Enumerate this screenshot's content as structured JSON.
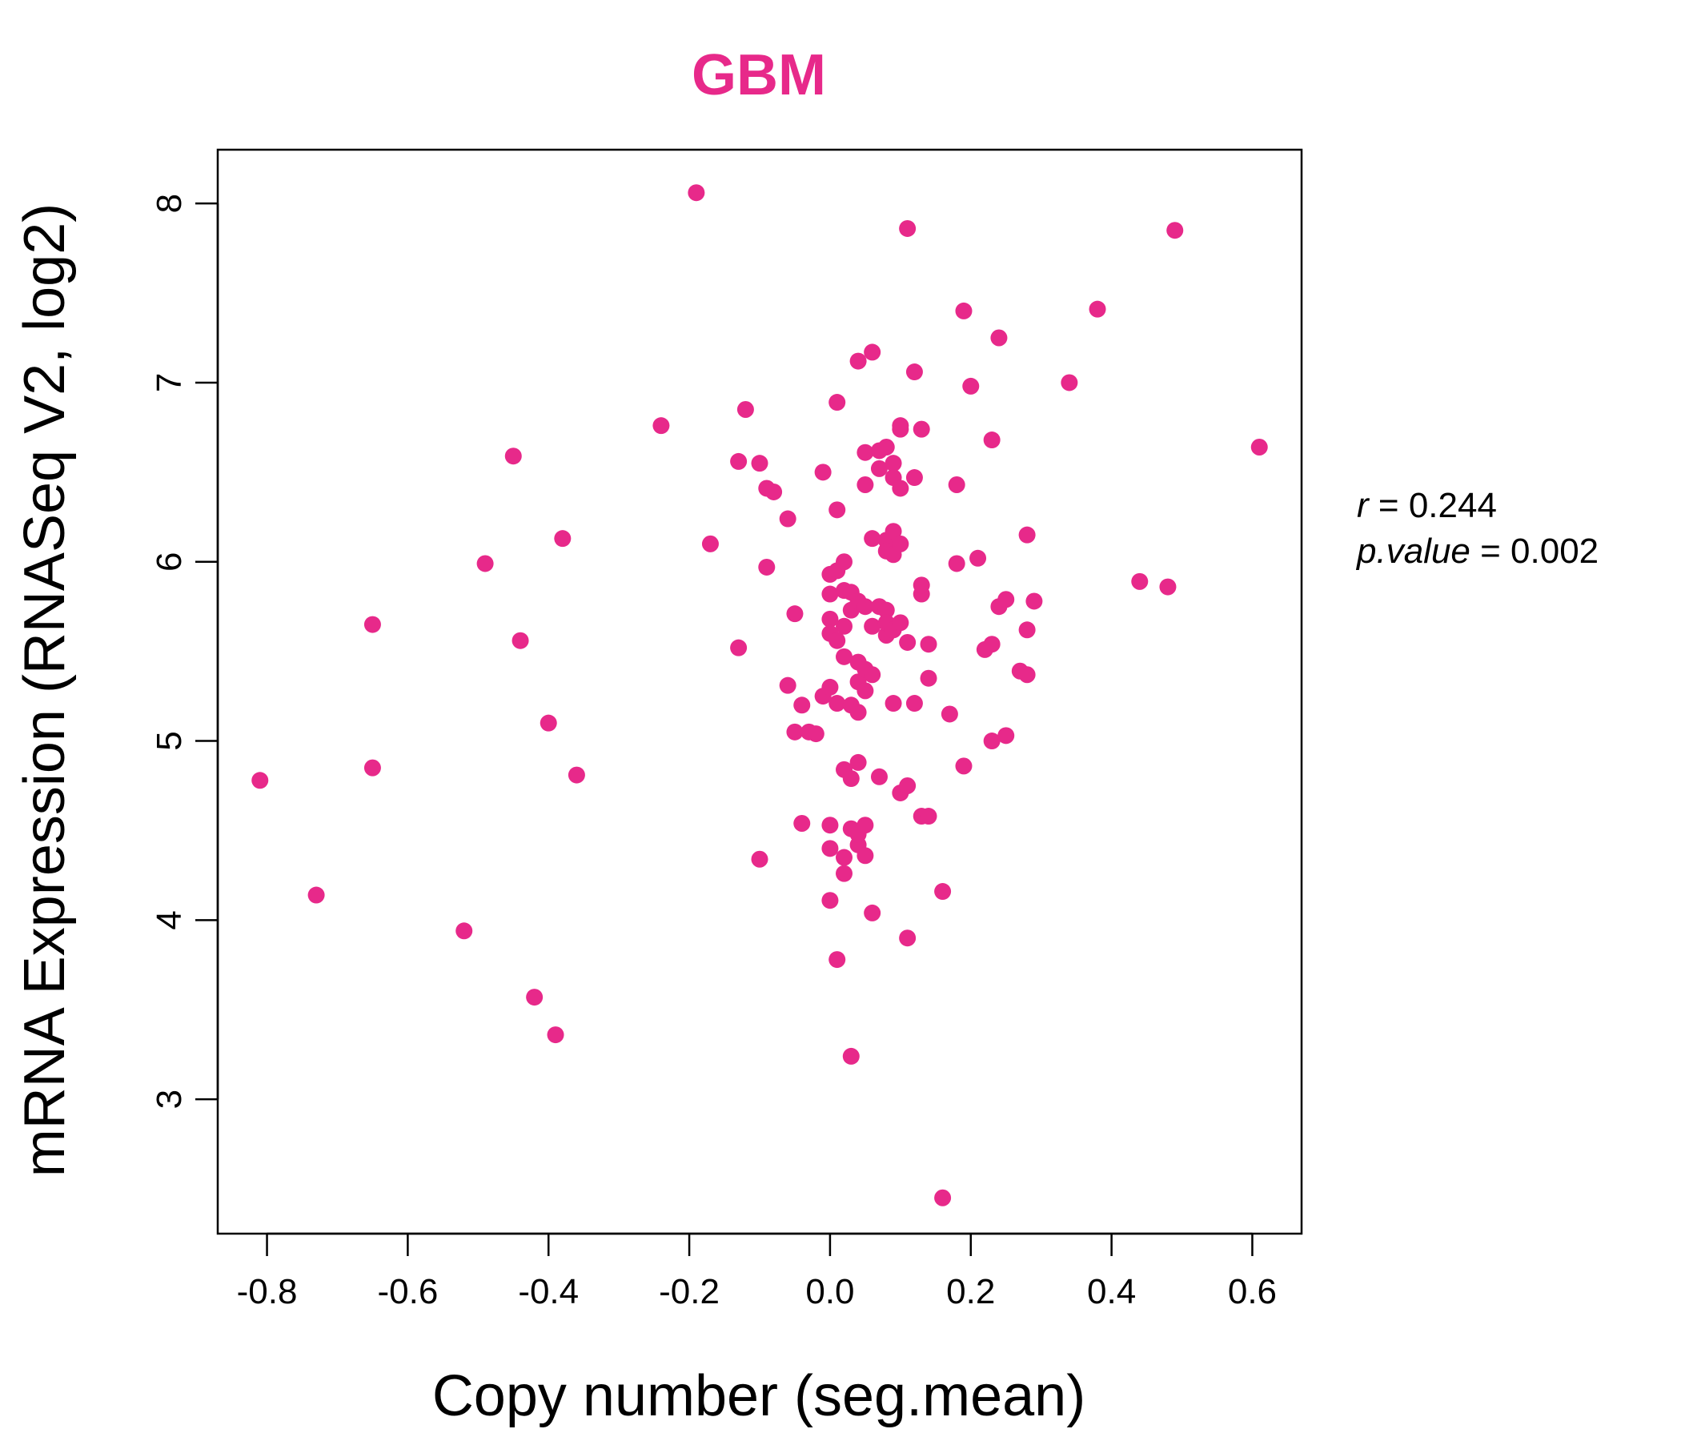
{
  "chart_data": {
    "type": "scatter",
    "title": "GBM",
    "xlabel": "Copy number (seg.mean)",
    "ylabel": "mRNA Expression (RNASeq V2, log2)",
    "xlim": [
      -0.87,
      0.67
    ],
    "ylim": [
      2.25,
      8.3
    ],
    "xticks": [
      -0.8,
      -0.6,
      -0.4,
      -0.2,
      0.0,
      0.2,
      0.4,
      0.6
    ],
    "xtick_labels": [
      "-0.8",
      "-0.6",
      "-0.4",
      "-0.2",
      "0.0",
      "0.2",
      "0.4",
      "0.6"
    ],
    "yticks": [
      3,
      4,
      5,
      6,
      7,
      8
    ],
    "ytick_labels": [
      "3",
      "4",
      "5",
      "6",
      "7",
      "8"
    ],
    "grid": false,
    "point_color": "#E7298A",
    "annotation": {
      "r_label": "r",
      "r_value": "0.244",
      "p_label": "p.value",
      "p_value": "0.002"
    },
    "points": [
      [
        -0.81,
        4.78
      ],
      [
        -0.73,
        4.14
      ],
      [
        -0.65,
        5.65
      ],
      [
        -0.65,
        4.85
      ],
      [
        -0.52,
        3.94
      ],
      [
        -0.49,
        5.99
      ],
      [
        -0.45,
        6.59
      ],
      [
        -0.44,
        5.56
      ],
      [
        -0.42,
        3.57
      ],
      [
        -0.4,
        5.1
      ],
      [
        -0.39,
        3.36
      ],
      [
        -0.38,
        6.13
      ],
      [
        -0.36,
        4.81
      ],
      [
        -0.24,
        6.76
      ],
      [
        -0.19,
        8.06
      ],
      [
        -0.17,
        6.1
      ],
      [
        -0.13,
        6.56
      ],
      [
        -0.13,
        5.52
      ],
      [
        -0.12,
        6.85
      ],
      [
        -0.1,
        4.34
      ],
      [
        -0.1,
        6.55
      ],
      [
        -0.09,
        5.97
      ],
      [
        -0.09,
        6.41
      ],
      [
        -0.08,
        6.39
      ],
      [
        -0.06,
        6.24
      ],
      [
        -0.06,
        5.31
      ],
      [
        -0.05,
        5.05
      ],
      [
        -0.05,
        5.71
      ],
      [
        -0.04,
        4.54
      ],
      [
        -0.04,
        5.2
      ],
      [
        -0.03,
        5.05
      ],
      [
        -0.02,
        5.04
      ],
      [
        -0.01,
        6.5
      ],
      [
        -0.01,
        5.25
      ],
      [
        0.0,
        5.93
      ],
      [
        0.0,
        5.68
      ],
      [
        0.0,
        5.6
      ],
      [
        0.0,
        5.82
      ],
      [
        0.0,
        4.4
      ],
      [
        0.0,
        4.11
      ],
      [
        0.0,
        5.3
      ],
      [
        0.0,
        4.53
      ],
      [
        0.01,
        6.29
      ],
      [
        0.01,
        5.56
      ],
      [
        0.01,
        5.95
      ],
      [
        0.01,
        6.89
      ],
      [
        0.01,
        5.21
      ],
      [
        0.01,
        3.78
      ],
      [
        0.02,
        5.64
      ],
      [
        0.02,
        6.0
      ],
      [
        0.02,
        5.84
      ],
      [
        0.02,
        4.84
      ],
      [
        0.02,
        4.35
      ],
      [
        0.02,
        4.26
      ],
      [
        0.02,
        5.47
      ],
      [
        0.03,
        4.79
      ],
      [
        0.03,
        5.83
      ],
      [
        0.03,
        4.51
      ],
      [
        0.03,
        3.24
      ],
      [
        0.03,
        5.73
      ],
      [
        0.03,
        5.2
      ],
      [
        0.04,
        5.78
      ],
      [
        0.04,
        5.44
      ],
      [
        0.04,
        5.16
      ],
      [
        0.04,
        5.33
      ],
      [
        0.04,
        4.88
      ],
      [
        0.04,
        7.12
      ],
      [
        0.04,
        4.42
      ],
      [
        0.04,
        4.48
      ],
      [
        0.05,
        6.43
      ],
      [
        0.05,
        5.4
      ],
      [
        0.05,
        4.36
      ],
      [
        0.05,
        4.53
      ],
      [
        0.05,
        6.61
      ],
      [
        0.05,
        5.28
      ],
      [
        0.05,
        5.75
      ],
      [
        0.06,
        7.17
      ],
      [
        0.06,
        6.13
      ],
      [
        0.06,
        5.64
      ],
      [
        0.06,
        5.37
      ],
      [
        0.06,
        4.04
      ],
      [
        0.07,
        5.75
      ],
      [
        0.07,
        4.8
      ],
      [
        0.07,
        6.62
      ],
      [
        0.07,
        6.52
      ],
      [
        0.08,
        6.64
      ],
      [
        0.08,
        5.73
      ],
      [
        0.08,
        5.59
      ],
      [
        0.08,
        6.12
      ],
      [
        0.08,
        6.06
      ],
      [
        0.08,
        5.66
      ],
      [
        0.09,
        6.55
      ],
      [
        0.09,
        6.47
      ],
      [
        0.09,
        6.17
      ],
      [
        0.09,
        5.62
      ],
      [
        0.09,
        6.04
      ],
      [
        0.09,
        5.21
      ],
      [
        0.1,
        6.76
      ],
      [
        0.1,
        6.74
      ],
      [
        0.1,
        6.41
      ],
      [
        0.1,
        5.66
      ],
      [
        0.1,
        6.1
      ],
      [
        0.1,
        4.71
      ],
      [
        0.11,
        4.75
      ],
      [
        0.11,
        5.55
      ],
      [
        0.11,
        3.9
      ],
      [
        0.11,
        7.86
      ],
      [
        0.12,
        7.06
      ],
      [
        0.12,
        6.47
      ],
      [
        0.12,
        5.21
      ],
      [
        0.13,
        6.74
      ],
      [
        0.13,
        5.82
      ],
      [
        0.13,
        4.58
      ],
      [
        0.13,
        5.87
      ],
      [
        0.14,
        5.54
      ],
      [
        0.14,
        4.58
      ],
      [
        0.14,
        5.35
      ],
      [
        0.16,
        4.16
      ],
      [
        0.16,
        2.45
      ],
      [
        0.17,
        5.15
      ],
      [
        0.18,
        6.43
      ],
      [
        0.18,
        5.99
      ],
      [
        0.19,
        4.86
      ],
      [
        0.19,
        7.4
      ],
      [
        0.2,
        6.98
      ],
      [
        0.21,
        6.02
      ],
      [
        0.22,
        5.51
      ],
      [
        0.23,
        5.54
      ],
      [
        0.23,
        5.0
      ],
      [
        0.23,
        6.68
      ],
      [
        0.24,
        7.25
      ],
      [
        0.24,
        5.75
      ],
      [
        0.25,
        5.79
      ],
      [
        0.25,
        5.03
      ],
      [
        0.27,
        5.39
      ],
      [
        0.28,
        5.37
      ],
      [
        0.28,
        6.15
      ],
      [
        0.28,
        5.62
      ],
      [
        0.29,
        5.78
      ],
      [
        0.34,
        7.0
      ],
      [
        0.38,
        7.41
      ],
      [
        0.44,
        5.89
      ],
      [
        0.48,
        5.86
      ],
      [
        0.49,
        7.85
      ],
      [
        0.61,
        6.64
      ]
    ]
  }
}
